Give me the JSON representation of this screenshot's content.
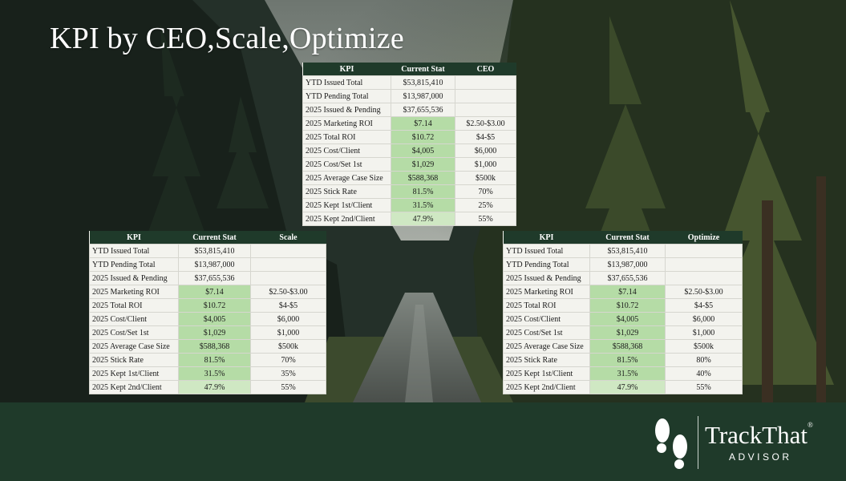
{
  "slide": {
    "title": "KPI by CEO,Scale,Optimize"
  },
  "tables": {
    "ceo": {
      "headers": [
        "KPI",
        "Current Stat",
        "CEO"
      ],
      "rows": [
        {
          "kpi": "YTD Issued Total",
          "current": "$53,815,410",
          "target": ""
        },
        {
          "kpi": "YTD Pending Total",
          "current": "$13,987,000",
          "target": ""
        },
        {
          "kpi": "2025 Issued & Pending",
          "current": "$37,655,536",
          "target": ""
        },
        {
          "kpi": "2025 Marketing ROI",
          "current": "$7.14",
          "target": "$2.50-$3.00"
        },
        {
          "kpi": "2025 Total ROI",
          "current": "$10.72",
          "target": "$4-$5"
        },
        {
          "kpi": "2025 Cost/Client",
          "current": "$4,005",
          "target": "$6,000"
        },
        {
          "kpi": "2025 Cost/Set 1st",
          "current": "$1,029",
          "target": "$1,000"
        },
        {
          "kpi": "2025 Average Case Size",
          "current": "$588,368",
          "target": "$500k"
        },
        {
          "kpi": "2025 Stick Rate",
          "current": "81.5%",
          "target": "70%"
        },
        {
          "kpi": "2025 Kept 1st/Client",
          "current": "31.5%",
          "target": "25%"
        },
        {
          "kpi": "2025 Kept 2nd/Client",
          "current": "47.9%",
          "target": "55%"
        }
      ]
    },
    "scale": {
      "headers": [
        "KPI",
        "Current Stat",
        "Scale"
      ],
      "rows": [
        {
          "kpi": "YTD Issued Total",
          "current": "$53,815,410",
          "target": ""
        },
        {
          "kpi": "YTD Pending Total",
          "current": "$13,987,000",
          "target": ""
        },
        {
          "kpi": "2025 Issued & Pending",
          "current": "$37,655,536",
          "target": ""
        },
        {
          "kpi": "2025 Marketing ROI",
          "current": "$7.14",
          "target": "$2.50-$3.00"
        },
        {
          "kpi": "2025 Total ROI",
          "current": "$10.72",
          "target": "$4-$5"
        },
        {
          "kpi": "2025 Cost/Client",
          "current": "$4,005",
          "target": "$6,000"
        },
        {
          "kpi": "2025 Cost/Set 1st",
          "current": "$1,029",
          "target": "$1,000"
        },
        {
          "kpi": "2025 Average Case Size",
          "current": "$588,368",
          "target": "$500k"
        },
        {
          "kpi": "2025 Stick Rate",
          "current": "81.5%",
          "target": "70%"
        },
        {
          "kpi": "2025 Kept 1st/Client",
          "current": "31.5%",
          "target": "35%"
        },
        {
          "kpi": "2025 Kept 2nd/Client",
          "current": "47.9%",
          "target": "55%"
        }
      ]
    },
    "optimize": {
      "headers": [
        "KPI",
        "Current Stat",
        "Optimize"
      ],
      "rows": [
        {
          "kpi": "YTD Issued Total",
          "current": "$53,815,410",
          "target": ""
        },
        {
          "kpi": "YTD Pending Total",
          "current": "$13,987,000",
          "target": ""
        },
        {
          "kpi": "2025 Issued & Pending",
          "current": "$37,655,536",
          "target": ""
        },
        {
          "kpi": "2025 Marketing ROI",
          "current": "$7.14",
          "target": "$2.50-$3.00"
        },
        {
          "kpi": "2025 Total ROI",
          "current": "$10.72",
          "target": "$4-$5"
        },
        {
          "kpi": "2025 Cost/Client",
          "current": "$4,005",
          "target": "$6,000"
        },
        {
          "kpi": "2025 Cost/Set 1st",
          "current": "$1,029",
          "target": "$1,000"
        },
        {
          "kpi": "2025 Average Case Size",
          "current": "$588,368",
          "target": "$500k"
        },
        {
          "kpi": "2025 Stick Rate",
          "current": "81.5%",
          "target": "80%"
        },
        {
          "kpi": "2025 Kept 1st/Client",
          "current": "31.5%",
          "target": "40%"
        },
        {
          "kpi": "2025 Kept 2nd/Client",
          "current": "47.9%",
          "target": "55%"
        }
      ]
    }
  },
  "logo": {
    "name": "TrackThat",
    "trademark": "®",
    "subtitle": "ADVISOR",
    "icon": "footprints-icon"
  },
  "colors": {
    "header_green": "#1f3a2a",
    "highlight_green": "#b5dca6",
    "light_green": "#cfe8c3",
    "table_bg": "#f3f3ee",
    "footer_band": "#1f3a2a"
  }
}
